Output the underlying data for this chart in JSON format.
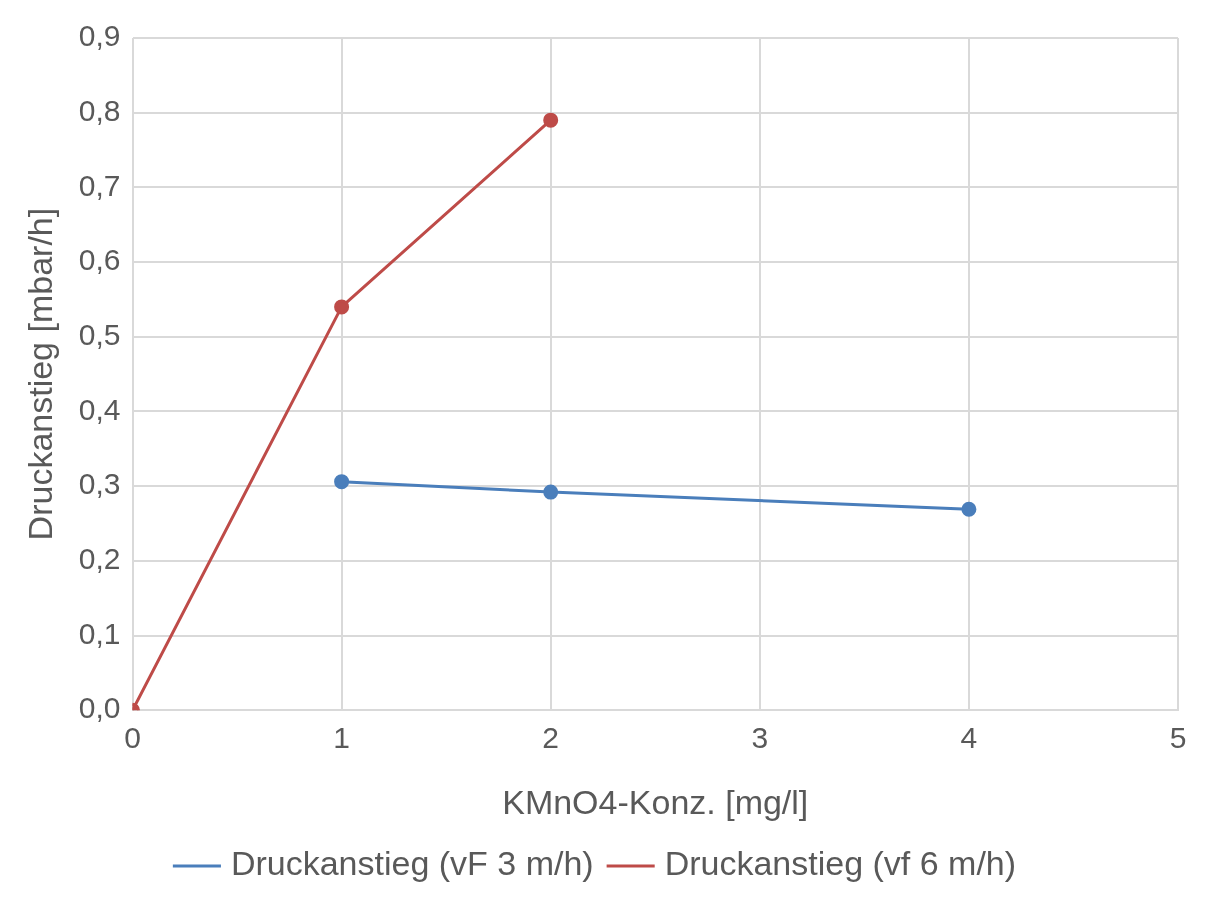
{
  "chart_data": {
    "type": "line",
    "xlabel": "KMnO4-Konz. [mg/l]",
    "ylabel": "Druckanstieg [mbar/h]",
    "series": [
      {
        "name": "Druckanstieg (vF 3 m/h)",
        "color": "#4a7ebb",
        "x": [
          1,
          2,
          4
        ],
        "values": [
          0.306,
          0.292,
          0.269
        ]
      },
      {
        "name": "Druckanstieg (vf 6 m/h)",
        "color": "#be4b48",
        "x": [
          0,
          1,
          2
        ],
        "values": [
          0,
          0.54,
          0.79
        ]
      }
    ],
    "xlim": [
      0,
      5
    ],
    "xticks": [
      0,
      1,
      2,
      3,
      4,
      5
    ],
    "ylim": [
      0,
      0.9
    ],
    "yticks": [
      {
        "value": 0,
        "label": "0,0"
      },
      {
        "value": 0.1,
        "label": "0,1"
      },
      {
        "value": 0.2,
        "label": "0,2"
      },
      {
        "value": 0.3,
        "label": "0,3"
      },
      {
        "value": 0.4,
        "label": "0,4"
      },
      {
        "value": 0.5,
        "label": "0,5"
      },
      {
        "value": 0.6,
        "label": "0,6"
      },
      {
        "value": 0.7,
        "label": "0,7"
      },
      {
        "value": 0.8,
        "label": "0,8"
      },
      {
        "value": 0.9,
        "label": "0,9"
      }
    ],
    "grid": true,
    "legend": "bottom",
    "marker": "circle",
    "line_style": "solid"
  }
}
